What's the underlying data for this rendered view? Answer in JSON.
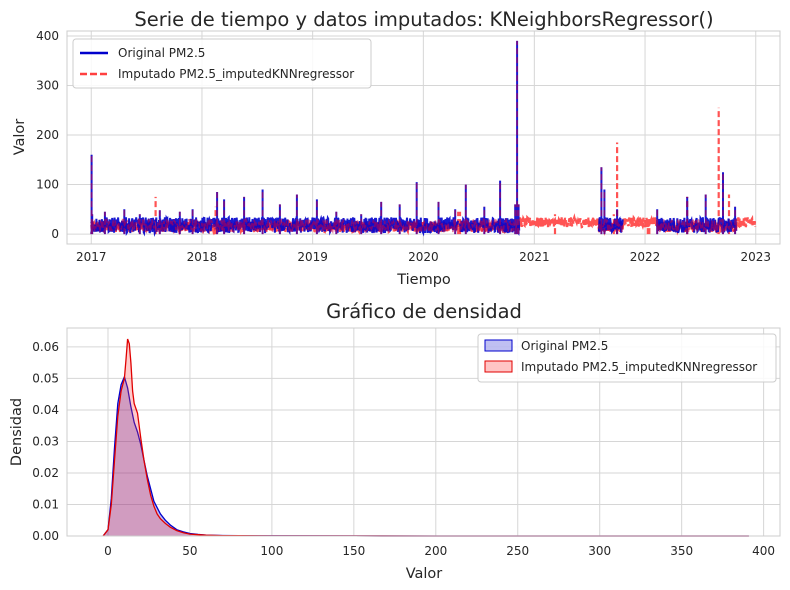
{
  "chart_data": [
    {
      "type": "line",
      "title": "Serie de tiempo y datos imputados: KNeighborsRegressor()",
      "xlabel": "Tiempo",
      "ylabel": "Valor",
      "xlim": [
        "2016-10-13",
        "2023-03-22"
      ],
      "ylim": [
        -20,
        410
      ],
      "x_ticks": [
        "2017",
        "2018",
        "2019",
        "2020",
        "2021",
        "2022",
        "2023"
      ],
      "y_ticks": [
        0,
        100,
        200,
        300,
        400
      ],
      "grid": true,
      "legend_position": "top-left",
      "series": [
        {
          "name": "Original PM2.5",
          "color": "#0000cc",
          "style": "solid",
          "points": [
            [
              "2017-01-01",
              5
            ],
            [
              "2017-01-02",
              160
            ],
            [
              "2017-01-04",
              40
            ],
            [
              "2017-02-15",
              45
            ],
            [
              "2017-04-20",
              50
            ],
            [
              "2017-06-10",
              40
            ],
            [
              "2017-08-15",
              48
            ],
            [
              "2017-10-20",
              45
            ],
            [
              "2017-12-01",
              50
            ],
            [
              "2018-02-20",
              85
            ],
            [
              "2018-03-15",
              70
            ],
            [
              "2018-05-20",
              75
            ],
            [
              "2018-07-20",
              90
            ],
            [
              "2018-09-15",
              60
            ],
            [
              "2018-11-10",
              80
            ],
            [
              "2019-01-15",
              70
            ],
            [
              "2019-03-20",
              45
            ],
            [
              "2019-06-10",
              40
            ],
            [
              "2019-08-15",
              65
            ],
            [
              "2019-10-15",
              60
            ],
            [
              "2019-12-10",
              105
            ],
            [
              "2020-02-20",
              65
            ],
            [
              "2020-04-15",
              50
            ],
            [
              "2020-05-20",
              100
            ],
            [
              "2020-07-20",
              55
            ],
            [
              "2020-09-10",
              108
            ],
            [
              "2020-10-30",
              60
            ],
            [
              "2020-11-05",
              390
            ],
            [
              "2020-11-10",
              60
            ],
            [
              "2021-08-10",
              135
            ],
            [
              "2021-08-20",
              90
            ],
            [
              "2021-10-01",
              50
            ],
            [
              "2022-02-10",
              50
            ],
            [
              "2022-05-20",
              75
            ],
            [
              "2022-07-20",
              80
            ],
            [
              "2022-09-15",
              125
            ],
            [
              "2022-10-25",
              55
            ]
          ],
          "segments": [
            [
              "2017-01-01",
              "2017-07-31"
            ],
            [
              "2017-08-02",
              "2020-04-25"
            ],
            [
              "2020-05-01",
              "2020-11-12"
            ],
            [
              "2021-08-01",
              "2021-10-20"
            ],
            [
              "2022-02-10",
              "2022-10-30"
            ]
          ]
        },
        {
          "name": "Imputado PM2.5_imputedKNNregressor",
          "color": "#ff4040",
          "style": "dashed",
          "points": [
            [
              "2017-08-01",
              75
            ],
            [
              "2018-02-15",
              55
            ],
            [
              "2020-04-25",
              45
            ],
            [
              "2020-05-01",
              45
            ],
            [
              "2021-03-10",
              40
            ],
            [
              "2021-09-20",
              40
            ],
            [
              "2021-10-01",
              185
            ],
            [
              "2022-01-10",
              12
            ],
            [
              "2022-01-15",
              35
            ],
            [
              "2022-05-20",
              75
            ],
            [
              "2022-09-01",
              255
            ],
            [
              "2022-10-05",
              80
            ]
          ],
          "segments": [
            [
              "2017-01-01",
              "2022-12-31"
            ]
          ]
        }
      ]
    },
    {
      "type": "area",
      "title": "Gráfico de densidad",
      "xlabel": "Valor",
      "ylabel": "Densidad",
      "xlim": [
        -25,
        410
      ],
      "ylim": [
        0,
        0.066
      ],
      "x_ticks": [
        0,
        50,
        100,
        150,
        200,
        250,
        300,
        350,
        400
      ],
      "y_ticks": [
        "0.00",
        "0.01",
        "0.02",
        "0.03",
        "0.04",
        "0.05",
        "0.06"
      ],
      "grid": true,
      "legend_position": "top-right",
      "series": [
        {
          "name": "Original PM2.5",
          "color": "#0000cc",
          "fill": "#0000cc",
          "x": [
            -3,
            0,
            2,
            4,
            6,
            8,
            10,
            12,
            14,
            16,
            18,
            20,
            22,
            24,
            26,
            28,
            30,
            32,
            35,
            38,
            42,
            46,
            50,
            55,
            60,
            70,
            80,
            100,
            150,
            200,
            300,
            391
          ],
          "values": [
            0,
            0.002,
            0.012,
            0.028,
            0.042,
            0.048,
            0.0505,
            0.047,
            0.041,
            0.036,
            0.033,
            0.029,
            0.024,
            0.019,
            0.015,
            0.011,
            0.009,
            0.007,
            0.005,
            0.0035,
            0.002,
            0.0013,
            0.0008,
            0.0005,
            0.0003,
            0.00015,
            0.0001,
            5e-05,
            2e-05,
            1e-05,
            1e-05,
            0
          ]
        },
        {
          "name": "Imputado PM2.5_imputedKNNregressor",
          "color": "#e00000",
          "fill": "#ff4040",
          "x": [
            -3,
            0,
            2,
            4,
            6,
            8,
            10,
            11,
            12,
            13,
            14,
            15,
            16,
            18,
            20,
            22,
            24,
            26,
            28,
            30,
            32,
            35,
            38,
            42,
            46,
            50,
            55,
            60,
            70,
            80,
            100,
            150,
            200,
            300,
            391
          ],
          "values": [
            0,
            0.002,
            0.01,
            0.024,
            0.038,
            0.046,
            0.05,
            0.056,
            0.0625,
            0.061,
            0.055,
            0.046,
            0.042,
            0.039,
            0.031,
            0.024,
            0.018,
            0.013,
            0.0095,
            0.007,
            0.0055,
            0.004,
            0.0028,
            0.0017,
            0.001,
            0.0006,
            0.0004,
            0.00025,
            0.00012,
            8e-05,
            4e-05,
            2e-05,
            1e-05,
            1e-05,
            0
          ]
        }
      ]
    }
  ]
}
